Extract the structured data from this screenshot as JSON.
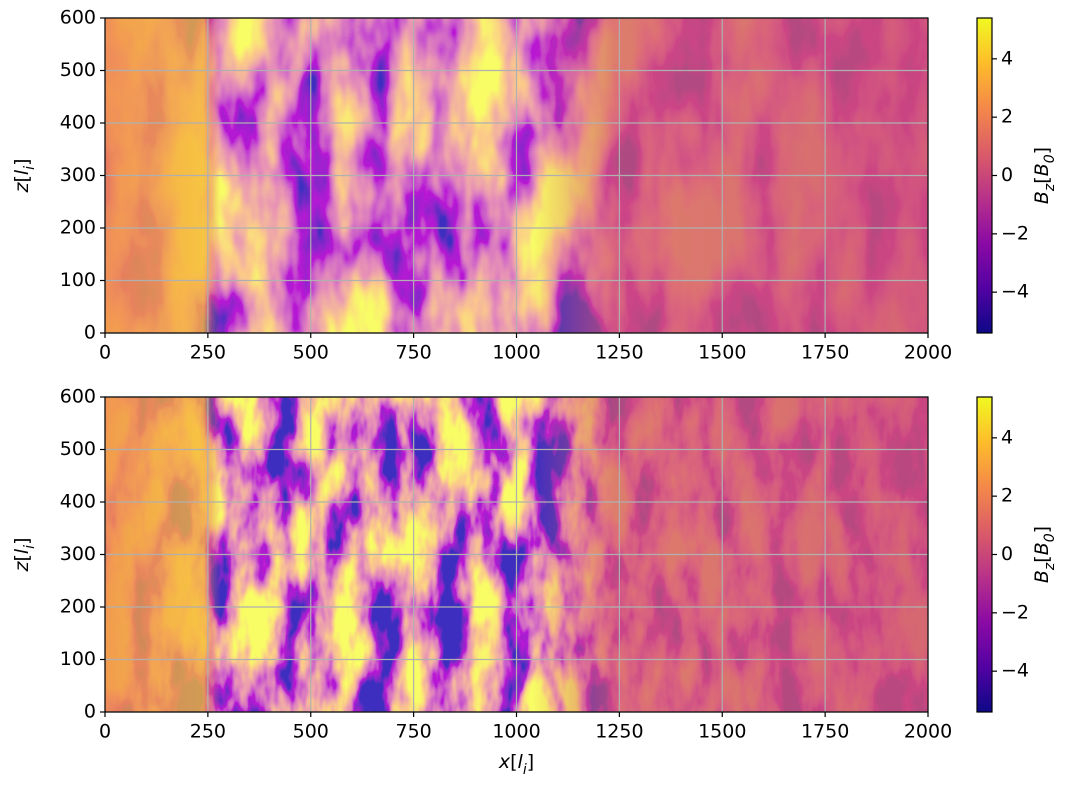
{
  "chart_data": [
    {
      "type": "image",
      "colormap": "plasma",
      "grid": true,
      "xlim": [
        0,
        2000
      ],
      "ylim": [
        0,
        600
      ],
      "xticks": [
        0,
        250,
        500,
        750,
        1000,
        1250,
        1500,
        1750,
        2000
      ],
      "yticks": [
        0,
        100,
        200,
        300,
        400,
        500,
        600
      ],
      "ylabel": "z[l_i]",
      "clim": [
        -5.4,
        5.4
      ],
      "cticks": [
        {
          "value": -4,
          "label": "−4"
        },
        {
          "value": -2,
          "label": "−2"
        },
        0,
        2,
        4
      ],
      "clabel": "B_z[B_0]"
    },
    {
      "type": "image",
      "colormap": "plasma",
      "grid": true,
      "xlim": [
        0,
        2000
      ],
      "ylim": [
        0,
        600
      ],
      "xticks": [
        0,
        250,
        500,
        750,
        1000,
        1250,
        1500,
        1750,
        2000
      ],
      "yticks": [
        0,
        100,
        200,
        300,
        400,
        500,
        600
      ],
      "xlabel": "x[l_i]",
      "ylabel": "z[l_i]",
      "clim": [
        -5.4,
        5.4
      ],
      "cticks": [
        {
          "value": -4,
          "label": "−4"
        },
        {
          "value": -2,
          "label": "−2"
        },
        0,
        2,
        4
      ],
      "clabel": "B_z[B_0]"
    }
  ]
}
